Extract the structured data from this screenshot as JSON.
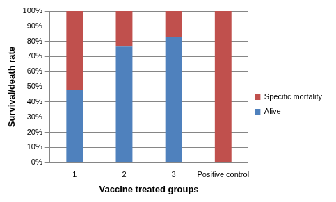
{
  "chart_data": {
    "type": "bar",
    "stacked": true,
    "x_label": "Vaccine treated groups",
    "y_label": "Survival/death rate",
    "categories": [
      "1",
      "2",
      "3",
      "Positive control"
    ],
    "series": [
      {
        "name": "Alive",
        "color": "#4f81bd",
        "values": [
          48,
          77,
          83,
          0
        ]
      },
      {
        "name": "Specific mortality",
        "color": "#c0504d",
        "values": [
          52,
          23,
          17,
          100
        ]
      }
    ],
    "ylim": [
      0,
      100
    ],
    "yticks": [
      {
        "value": 0,
        "label": "0%"
      },
      {
        "value": 10,
        "label": "10%"
      },
      {
        "value": 20,
        "label": "20%"
      },
      {
        "value": 30,
        "label": "30%"
      },
      {
        "value": 40,
        "label": "40%"
      },
      {
        "value": 50,
        "label": "50%"
      },
      {
        "value": 60,
        "label": "60%"
      },
      {
        "value": 70,
        "label": "70%"
      },
      {
        "value": 80,
        "label": "80%"
      },
      {
        "value": 90,
        "label": "90%"
      },
      {
        "value": 100,
        "label": "100%"
      }
    ],
    "grid": true,
    "legend": "right"
  }
}
